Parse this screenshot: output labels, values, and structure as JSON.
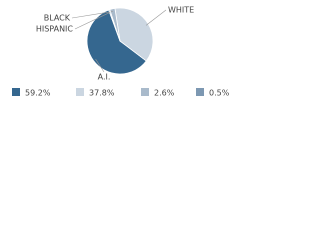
{
  "chart_data": {
    "type": "pie",
    "categories": [
      "A.I.",
      "WHITE",
      "BLACK",
      "HISPANIC"
    ],
    "values": [
      59.2,
      37.8,
      2.6,
      0.5
    ],
    "value_labels": [
      "59.2%",
      "37.8%",
      "2.6%",
      "0.5%"
    ],
    "colors": [
      "#35678f",
      "#cbd6e1",
      "#a9bacb",
      "#7d98b2"
    ]
  }
}
